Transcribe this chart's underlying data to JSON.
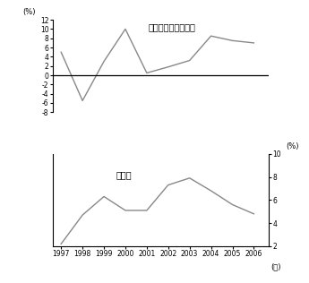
{
  "years": [
    1997,
    1998,
    1999,
    2000,
    2001,
    2002,
    2003,
    2004,
    2005,
    2006
  ],
  "gdp_growth": [
    5.0,
    -5.5,
    3.0,
    10.0,
    0.5,
    1.8,
    3.2,
    8.5,
    7.5,
    7.0
  ],
  "unemployment": [
    2.2,
    4.7,
    6.3,
    5.1,
    5.1,
    7.3,
    7.9,
    6.8,
    5.6,
    4.8
  ],
  "gdp_ylim": [
    -8,
    12
  ],
  "gdp_yticks": [
    -8,
    -6,
    -4,
    -2,
    0,
    2,
    4,
    6,
    8,
    10,
    12
  ],
  "unemp_ylim": [
    2,
    10
  ],
  "unemp_yticks": [
    2,
    4,
    6,
    8,
    10
  ],
  "gdp_label": "経済成長率（実質）",
  "unemp_label": "失業率",
  "ylabel_pct": "(%)",
  "xlabel": "(年)",
  "line_color": "#888888",
  "text_color": "#000000",
  "background_color": "#ffffff"
}
